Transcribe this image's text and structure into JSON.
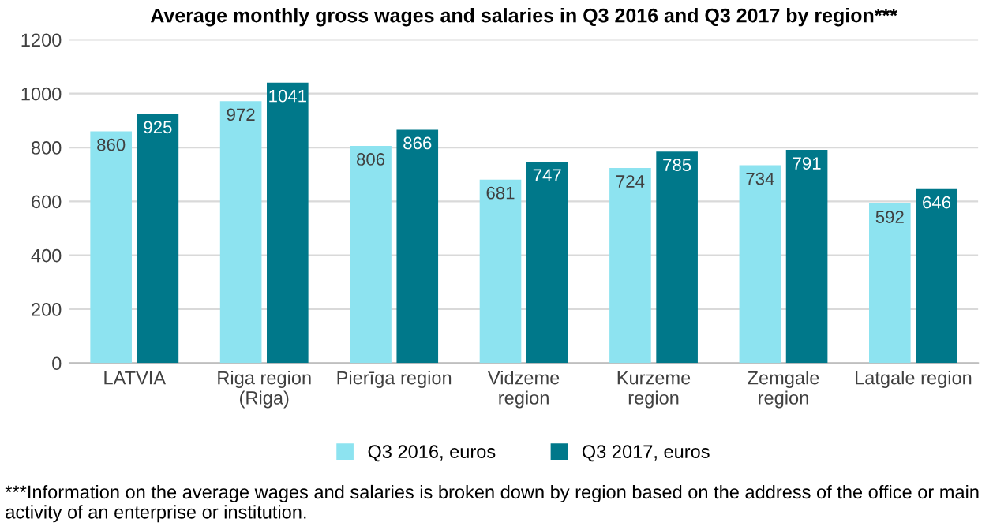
{
  "chart_data": {
    "type": "bar",
    "title": "Average monthly gross wages and salaries in Q3 2016 and Q3 2017 by region***",
    "categories": [
      "LATVIA",
      "Riga region\n(Riga)",
      "Pierīga region",
      "Vidzeme\nregion",
      "Kurzeme\nregion",
      "Zemgale\nregion",
      "Latgale region"
    ],
    "series": [
      {
        "name": "Q3 2016, euros",
        "color": "#8de3f0",
        "values": [
          860,
          972,
          806,
          681,
          724,
          734,
          592
        ]
      },
      {
        "name": "Q3 2017, euros",
        "color": "#00788a",
        "values": [
          925,
          1041,
          866,
          747,
          785,
          791,
          646
        ]
      }
    ],
    "ylim": [
      0,
      1200
    ],
    "yticks": [
      0,
      200,
      400,
      600,
      800,
      1000,
      1200
    ],
    "grid": "y",
    "legend": "bottom",
    "data_labels": true,
    "annotations": [
      "***Information on the average wages and salaries is broken down by region based on the address of the office or main activity of an enterprise or institution."
    ]
  }
}
